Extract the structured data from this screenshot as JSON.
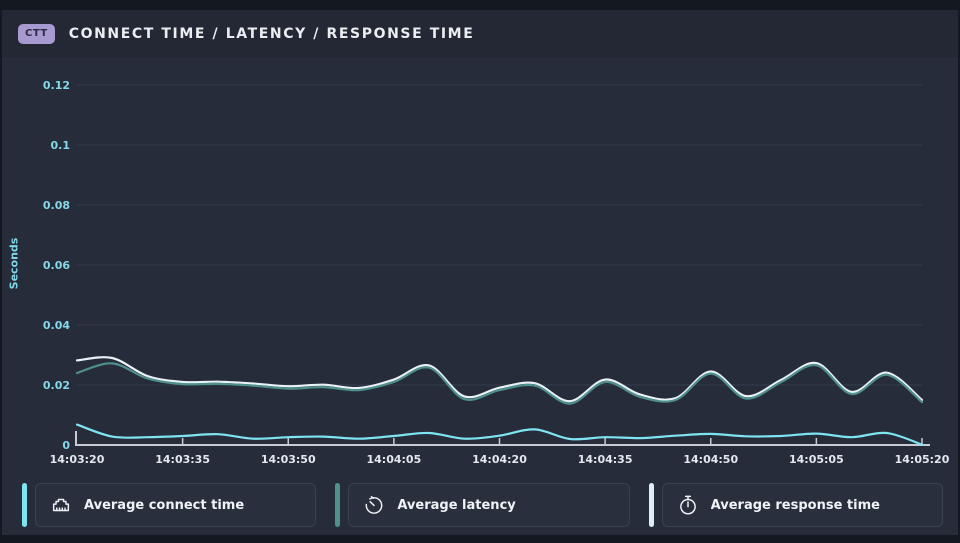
{
  "header": {
    "badge": "CTT",
    "title": "CONNECT TIME / LATENCY / RESPONSE TIME"
  },
  "colors": {
    "background_outer": "#141820",
    "panel": "#272c3b",
    "header_band": "#232834",
    "gridline": "#333b4d",
    "axis": "#c6cbd4",
    "y_tick_text": "#84d8e8",
    "x_tick_text": "#e4e8ee",
    "badge_bg": "#a79ad1"
  },
  "chart_data": {
    "type": "line",
    "title": "CONNECT TIME / LATENCY / RESPONSE TIME",
    "xlabel": "",
    "ylabel": "Seconds",
    "ylim": [
      0,
      0.13
    ],
    "grid": true,
    "legend_position": "bottom",
    "y_ticks": [
      0,
      0.02,
      0.04,
      0.06,
      0.08,
      0.1,
      0.12
    ],
    "y_tick_labels": [
      "0",
      "0.02",
      "0.04",
      "0.06",
      "0.08",
      "0.1",
      "0.12"
    ],
    "x_tick_labels": [
      "14:03:20",
      "14:03:35",
      "14:03:50",
      "14:04:05",
      "14:04:20",
      "14:04:35",
      "14:04:50",
      "14:05:05",
      "14:05:20"
    ],
    "x": [
      "14:03:20",
      "14:03:25",
      "14:03:30",
      "14:03:35",
      "14:03:40",
      "14:03:45",
      "14:03:50",
      "14:03:55",
      "14:04:00",
      "14:04:05",
      "14:04:10",
      "14:04:15",
      "14:04:20",
      "14:04:25",
      "14:04:30",
      "14:04:35",
      "14:04:40",
      "14:04:45",
      "14:04:50",
      "14:04:55",
      "14:05:00",
      "14:05:05",
      "14:05:10",
      "14:05:15",
      "14:05:20"
    ],
    "series": [
      {
        "name": "Average response time",
        "color": "#e9f2f5",
        "values": [
          0.0282,
          0.029,
          0.023,
          0.021,
          0.0211,
          0.0205,
          0.0196,
          0.0201,
          0.019,
          0.0218,
          0.0265,
          0.0162,
          0.0191,
          0.0206,
          0.0146,
          0.0218,
          0.0168,
          0.0156,
          0.0245,
          0.0163,
          0.0217,
          0.0273,
          0.0177,
          0.0241,
          0.015
        ]
      },
      {
        "name": "Average latency",
        "color": "#4f908d",
        "values": [
          0.024,
          0.0272,
          0.0222,
          0.0203,
          0.0204,
          0.0198,
          0.0188,
          0.0193,
          0.0183,
          0.021,
          0.0258,
          0.0153,
          0.0183,
          0.0198,
          0.0138,
          0.021,
          0.016,
          0.015,
          0.0238,
          0.0155,
          0.021,
          0.0266,
          0.017,
          0.0234,
          0.0143
        ]
      },
      {
        "name": "Average connect time",
        "color": "#7fe4f2",
        "values": [
          0.0068,
          0.0028,
          0.0026,
          0.003,
          0.0036,
          0.0021,
          0.0026,
          0.0028,
          0.0021,
          0.003,
          0.004,
          0.0021,
          0.0031,
          0.0052,
          0.002,
          0.0026,
          0.0023,
          0.0031,
          0.0037,
          0.0029,
          0.003,
          0.0038,
          0.0026,
          0.004,
          0.0001
        ]
      }
    ]
  },
  "legend": {
    "items": [
      {
        "label": "Average connect time",
        "icon": "ethernet-icon",
        "color": "#7fe4f2"
      },
      {
        "label": "Average latency",
        "icon": "clock-icon",
        "color": "#4f908d"
      },
      {
        "label": "Average response time",
        "icon": "stopwatch-icon",
        "color": "#dcedf4"
      }
    ]
  }
}
